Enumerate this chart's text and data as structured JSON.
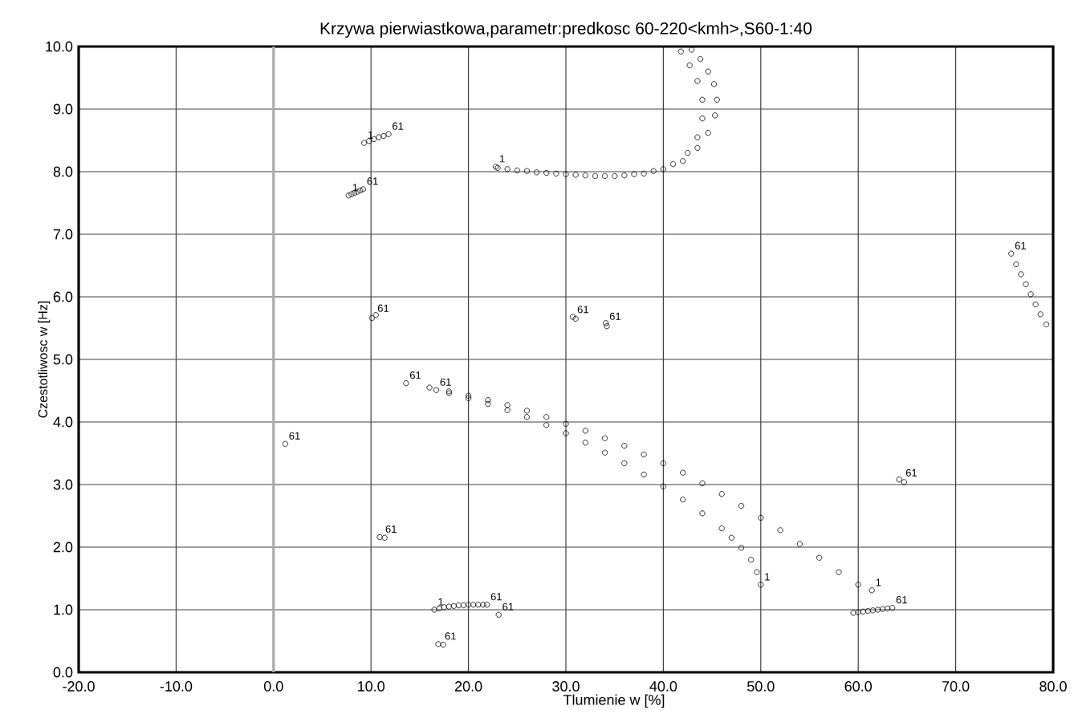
{
  "chart_data": {
    "type": "scatter",
    "title": "Krzywa pierwiastkowa,parametr:predkosc 60-220<kmh>,S60-1:40",
    "xlabel": "Tlumienie w [%]",
    "ylabel": "Czestotliwosc w [Hz]",
    "xlim": [
      -20,
      80
    ],
    "ylim": [
      0,
      10
    ],
    "xticks": [
      {
        "value": -20,
        "label": "-20.0"
      },
      {
        "value": -10,
        "label": "-10.0"
      },
      {
        "value": 0,
        "label": "0.0"
      },
      {
        "value": 10,
        "label": "10.0"
      },
      {
        "value": 20,
        "label": "20.0"
      },
      {
        "value": 30,
        "label": "30.0"
      },
      {
        "value": 40,
        "label": "40.0"
      },
      {
        "value": 50,
        "label": "50.0"
      },
      {
        "value": 60,
        "label": "60.0"
      },
      {
        "value": 70,
        "label": "70.0"
      },
      {
        "value": 80,
        "label": "80.0"
      }
    ],
    "yticks": [
      {
        "value": 0,
        "label": "0.0"
      },
      {
        "value": 1,
        "label": "1.0"
      },
      {
        "value": 2,
        "label": "2.0"
      },
      {
        "value": 3,
        "label": "3.0"
      },
      {
        "value": 4,
        "label": "4.0"
      },
      {
        "value": 5,
        "label": "5.0"
      },
      {
        "value": 6,
        "label": "6.0"
      },
      {
        "value": 7,
        "label": "7.0"
      },
      {
        "value": 8,
        "label": "8.0"
      },
      {
        "value": 9,
        "label": "9.0"
      },
      {
        "value": 10,
        "label": "10.0"
      }
    ],
    "grid": true,
    "marker": "circle",
    "ref_lines": [
      {
        "axis": "x",
        "value": 0,
        "color": "#aaaaaa"
      }
    ],
    "series": [
      {
        "color": "#000000",
        "x": [
          22.8,
          24,
          26,
          28,
          30,
          32,
          34,
          36,
          38,
          40,
          42,
          43.5,
          44.6,
          45.3,
          45.5,
          45.2,
          44.6,
          43.8,
          42.9
        ],
        "values": [
          8.08,
          8.04,
          8.01,
          7.98,
          7.96,
          7.94,
          7.93,
          7.94,
          7.97,
          8.04,
          8.17,
          8.38,
          8.62,
          8.9,
          9.15,
          9.4,
          9.6,
          9.8,
          9.95
        ]
      },
      {
        "color": "#000000",
        "x": [
          23,
          25,
          27,
          29,
          31,
          33,
          35,
          37,
          39,
          41,
          42.5,
          43.5,
          44,
          44,
          43.5,
          42.7,
          41.8
        ],
        "values": [
          8.06,
          8.02,
          7.99,
          7.97,
          7.95,
          7.93,
          7.93,
          7.96,
          8.01,
          8.12,
          8.3,
          8.55,
          8.85,
          9.15,
          9.45,
          9.7,
          9.92
        ]
      },
      {
        "color": "#000000",
        "x": [
          13.6,
          16,
          18,
          20,
          22,
          24,
          26,
          28,
          30,
          32,
          34,
          36,
          38,
          40,
          42,
          44,
          46,
          48,
          50,
          52,
          54,
          56,
          58,
          60,
          61.4
        ],
        "values": [
          4.62,
          4.55,
          4.49,
          4.42,
          4.35,
          4.27,
          4.18,
          4.08,
          3.97,
          3.86,
          3.74,
          3.62,
          3.48,
          3.34,
          3.19,
          3.02,
          2.85,
          2.66,
          2.47,
          2.27,
          2.05,
          1.83,
          1.6,
          1.4,
          1.31
        ]
      },
      {
        "color": "#000000",
        "x": [
          16.7,
          18,
          20,
          22,
          24,
          26,
          28,
          30,
          32,
          34,
          36,
          38,
          40,
          42,
          44,
          46,
          47,
          48,
          49,
          49.6,
          50
        ],
        "values": [
          4.51,
          4.46,
          4.38,
          4.29,
          4.19,
          4.08,
          3.95,
          3.82,
          3.67,
          3.51,
          3.34,
          3.16,
          2.97,
          2.76,
          2.54,
          2.3,
          2.15,
          1.99,
          1.8,
          1.6,
          1.4
        ]
      },
      {
        "color": "#000000",
        "x": [
          75.7,
          76.2,
          76.7,
          77.2,
          77.7,
          78.2,
          78.7,
          79.3
        ],
        "values": [
          6.69,
          6.52,
          6.36,
          6.2,
          6.04,
          5.88,
          5.72,
          5.56
        ]
      },
      {
        "color": "#000000",
        "x": [
          9.3,
          9.8,
          10.3,
          10.8,
          11.3,
          11.8,
          7.7,
          8.0,
          8.3,
          8.6,
          8.9,
          9.2
        ],
        "values": [
          8.46,
          8.49,
          8.52,
          8.55,
          8.57,
          8.6,
          7.62,
          7.64,
          7.66,
          7.68,
          7.7,
          7.72
        ]
      },
      {
        "color": "#000000",
        "x": [
          16.5,
          17,
          17.5,
          18,
          18.5,
          19,
          19.5,
          20,
          20.5,
          21,
          21.5,
          21.9,
          23.1,
          16.9,
          17.4
        ],
        "values": [
          1.0,
          1.02,
          1.04,
          1.05,
          1.06,
          1.07,
          1.07,
          1.08,
          1.08,
          1.08,
          1.08,
          1.08,
          0.92,
          0.45,
          0.44
        ]
      },
      {
        "color": "#000000",
        "x": [
          59.5,
          60,
          60.5,
          61,
          61.5,
          62,
          62.5,
          63,
          63.5
        ],
        "values": [
          0.95,
          0.96,
          0.97,
          0.98,
          0.99,
          1.0,
          1.01,
          1.02,
          1.03
        ]
      },
      {
        "color": "#000000",
        "x": [
          10.1,
          10.5,
          30.7,
          31,
          34.1,
          34.2,
          1.2,
          10.9,
          11.4,
          64.2,
          64.7
        ],
        "values": [
          5.66,
          5.71,
          5.68,
          5.65,
          5.58,
          5.53,
          3.65,
          2.16,
          2.15,
          3.08,
          3.04
        ]
      }
    ],
    "annotations": [
      {
        "text": "1",
        "x": 22.8,
        "y": 8.08
      },
      {
        "text": "1",
        "x": 9.3,
        "y": 8.46
      },
      {
        "text": "61",
        "x": 11.8,
        "y": 8.6
      },
      {
        "text": "1",
        "x": 7.7,
        "y": 7.62
      },
      {
        "text": "61",
        "x": 9.2,
        "y": 7.72
      },
      {
        "text": "61",
        "x": 10.3,
        "y": 5.69
      },
      {
        "text": "61",
        "x": 30.8,
        "y": 5.67
      },
      {
        "text": "61",
        "x": 34.1,
        "y": 5.56
      },
      {
        "text": "61",
        "x": 13.6,
        "y": 4.62
      },
      {
        "text": "61",
        "x": 16.7,
        "y": 4.51
      },
      {
        "text": "61",
        "x": 1.2,
        "y": 3.65
      },
      {
        "text": "61",
        "x": 11.1,
        "y": 2.16
      },
      {
        "text": "61",
        "x": 64.5,
        "y": 3.06
      },
      {
        "text": "61",
        "x": 75.7,
        "y": 6.69
      },
      {
        "text": "1",
        "x": 61.4,
        "y": 1.31
      },
      {
        "text": "1",
        "x": 50,
        "y": 1.4
      },
      {
        "text": "61",
        "x": 63.5,
        "y": 1.03
      },
      {
        "text": "1",
        "x": 16.5,
        "y": 1.0
      },
      {
        "text": "61",
        "x": 21.9,
        "y": 1.08
      },
      {
        "text": "61",
        "x": 23.1,
        "y": 0.92
      },
      {
        "text": "61",
        "x": 17.2,
        "y": 0.45
      }
    ]
  }
}
